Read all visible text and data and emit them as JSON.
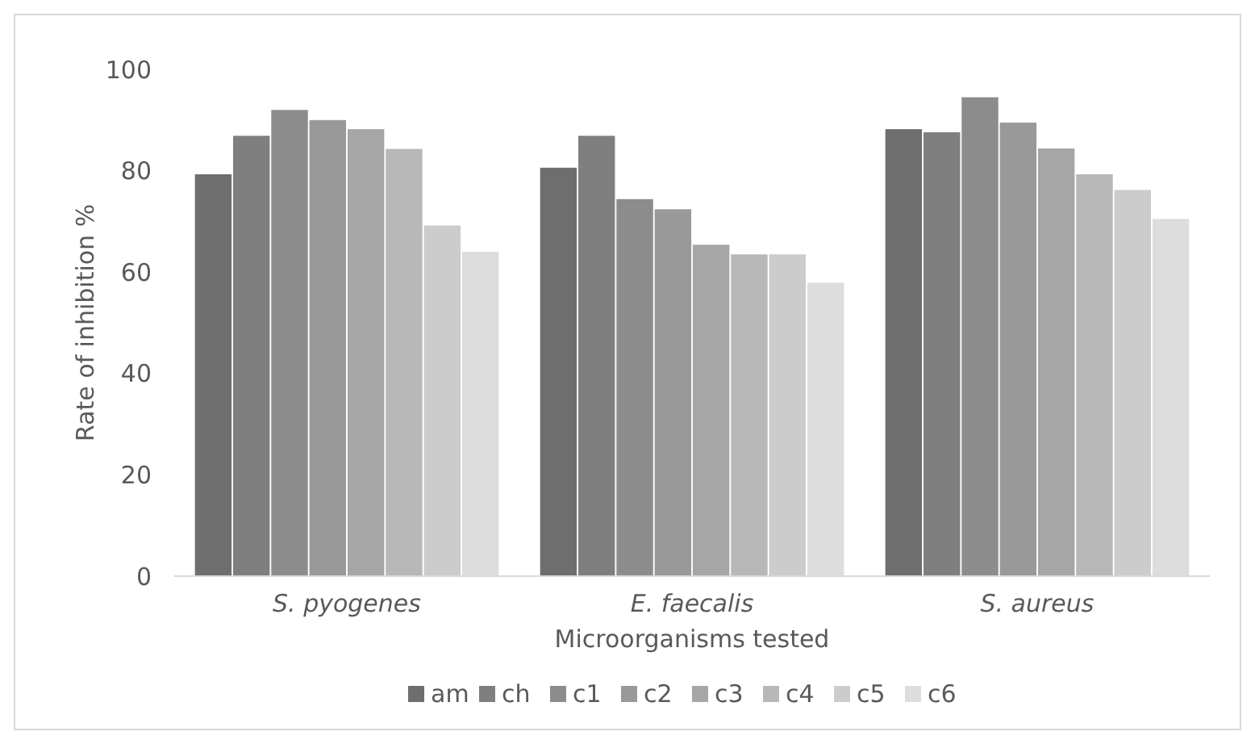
{
  "chart_data": {
    "type": "bar",
    "xlabel": "Microorganisms tested",
    "ylabel": "Rate of inhibition %",
    "categories": [
      "S. pyogenes",
      "E. faecalis",
      "S. aureus"
    ],
    "series": [
      {
        "name": "am",
        "color": "#6e6e6e",
        "values": [
          79.3,
          80.6,
          88.2
        ]
      },
      {
        "name": "ch",
        "color": "#7f7f7f",
        "values": [
          86.9,
          86.9,
          87.6
        ]
      },
      {
        "name": "c1",
        "color": "#8c8c8c",
        "values": [
          92,
          74.4,
          94.5
        ]
      },
      {
        "name": "c2",
        "color": "#999999",
        "values": [
          90,
          72.4,
          89.5
        ]
      },
      {
        "name": "c3",
        "color": "#a6a6a6",
        "values": [
          88.2,
          65.4,
          84.4
        ]
      },
      {
        "name": "c4",
        "color": "#b8b8b8",
        "values": [
          84.3,
          63.5,
          79.3
        ]
      },
      {
        "name": "c5",
        "color": "#cccccc",
        "values": [
          69.2,
          63.5,
          76.2
        ]
      },
      {
        "name": "c6",
        "color": "#dddddd",
        "values": [
          64,
          57.9,
          70.5
        ]
      }
    ],
    "ylim": [
      0,
      100
    ],
    "yticks": [
      0,
      20,
      40,
      60,
      80,
      100
    ],
    "grid": false,
    "legend": "bottom"
  }
}
